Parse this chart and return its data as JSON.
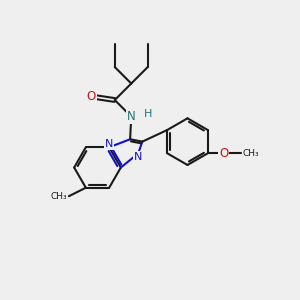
{
  "bg_color": "#efefef",
  "bond_color": "#1a1a1a",
  "bond_width": 1.5,
  "N_color": "#1111cc",
  "O_color": "#cc1111",
  "NH_color": "#227777",
  "figsize": [
    3.0,
    3.0
  ],
  "dpi": 100,
  "xlim": [
    0,
    10
  ],
  "ylim": [
    0,
    10
  ]
}
